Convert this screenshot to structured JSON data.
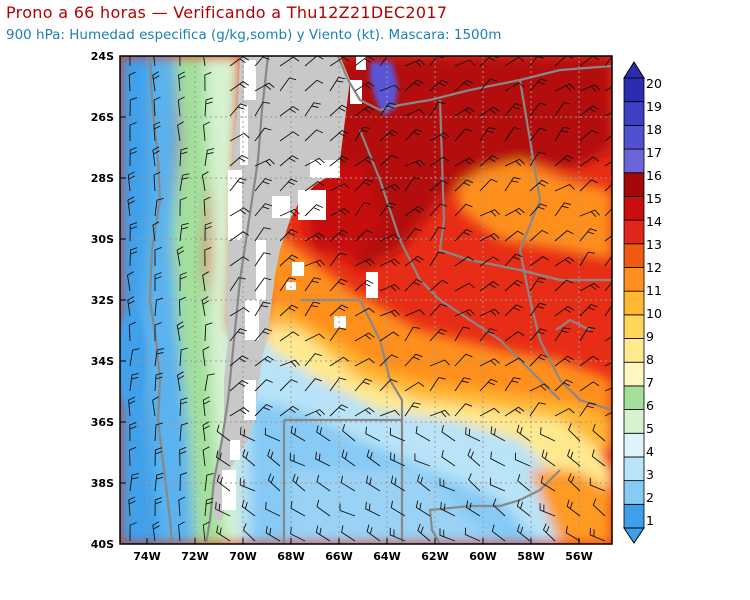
{
  "header": {
    "title": "Prono a 66 horas — Verificando a Thu12Z21DEC2017",
    "subtitle": "900 hPa: Humedad especifica (g/kg,somb) y Viento (kt). Mascara: 1500m"
  },
  "axes": {
    "lat_labels": [
      "24S",
      "26S",
      "28S",
      "30S",
      "32S",
      "34S",
      "36S",
      "38S",
      "40S"
    ],
    "lon_labels": [
      "74W",
      "72W",
      "70W",
      "68W",
      "66W",
      "64W",
      "62W",
      "60W",
      "58W",
      "56W"
    ]
  },
  "colorbar": {
    "labels": [
      "1",
      "2",
      "3",
      "4",
      "5",
      "6",
      "7",
      "8",
      "9",
      "10",
      "11",
      "12",
      "13",
      "14",
      "15",
      "16",
      "17",
      "18",
      "19",
      "20"
    ],
    "colors": [
      "#3fa0ea",
      "#86caf5",
      "#b8e3f8",
      "#dff3fb",
      "#d6f2d0",
      "#a3e09b",
      "#fff6c2",
      "#ffe98f",
      "#ffd65a",
      "#ffb833",
      "#ff8f1f",
      "#f05a14",
      "#e0281a",
      "#c80e0e",
      "#a50808",
      "#6a66d8",
      "#5050d0",
      "#3f3fc4",
      "#2c2cb0"
    ],
    "mask_color": "#c8c8c8"
  }
}
